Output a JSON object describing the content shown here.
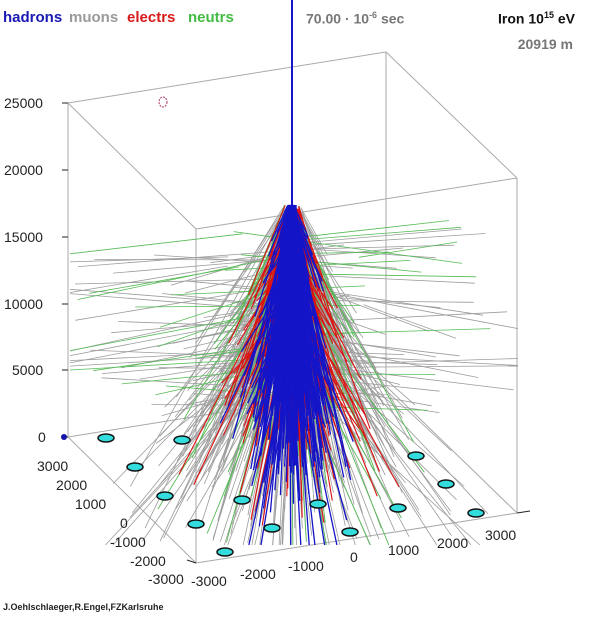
{
  "legend": {
    "hadrons": "hadrons",
    "muons": "muons",
    "electrons": "electrs",
    "neutrons": "neutrs"
  },
  "time": {
    "value": "70.00",
    "unit_prefix": "· 10",
    "exponent": "-6",
    "unit": "sec"
  },
  "primary": {
    "particle": "Iron",
    "energy_base": "10",
    "energy_exp": "15",
    "energy_unit": "eV"
  },
  "height_readout": "20919 m",
  "credit": "J.Oehlschlaeger,R.Engel,FZKarlsruhe",
  "axes": {
    "z_ticks": [
      "25000",
      "20000",
      "15000",
      "10000",
      "5000",
      "0"
    ],
    "y_ticks": [
      "3000",
      "2000",
      "1000",
      "0",
      "-1000",
      "-2000",
      "-3000"
    ],
    "x_ticks": [
      "-3000",
      "-2000",
      "-1000",
      "0",
      "1000",
      "2000",
      "3000"
    ]
  },
  "colors": {
    "hadrons": "#1414c8",
    "muons": "#9c9c9c",
    "electrons": "#dd1111",
    "neutrons": "#55bb55",
    "detectors": "#33dddd",
    "box": "#aaaaaa"
  }
}
